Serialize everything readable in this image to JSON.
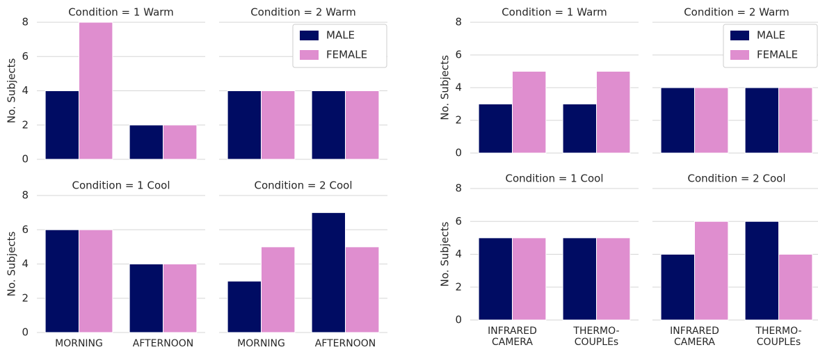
{
  "chart_data": [
    {
      "type": "bar",
      "title": "Condition = 1 Warm",
      "ylabel": "No. Subjects",
      "categories": [
        null,
        null
      ],
      "series": [
        {
          "name": "MALE",
          "color": "#000c63",
          "values": [
            4,
            2
          ]
        },
        {
          "name": "FEMALE",
          "color": "#df8ecf",
          "values": [
            8,
            2
          ]
        }
      ],
      "ylim": [
        0,
        8
      ],
      "yticks": [
        0,
        2,
        4,
        6,
        8
      ],
      "grid": true
    },
    {
      "type": "bar",
      "title": "Condition = 2 Warm",
      "categories": [
        null,
        null
      ],
      "series": [
        {
          "name": "MALE",
          "color": "#000c63",
          "values": [
            4,
            4
          ]
        },
        {
          "name": "FEMALE",
          "color": "#df8ecf",
          "values": [
            4,
            4
          ]
        }
      ],
      "ylim": [
        0,
        8
      ],
      "yticks": [
        0,
        2,
        4,
        6,
        8
      ],
      "ytick_labels": false,
      "grid": true,
      "legend": "upper right"
    },
    {
      "type": "bar",
      "title": "Condition = 1 Cool",
      "ylabel": "No. Subjects",
      "categories": [
        "MORNING",
        "AFTERNOON"
      ],
      "series": [
        {
          "name": "MALE",
          "color": "#000c63",
          "values": [
            6,
            4
          ]
        },
        {
          "name": "FEMALE",
          "color": "#df8ecf",
          "values": [
            6,
            4
          ]
        }
      ],
      "ylim": [
        0,
        8
      ],
      "yticks": [
        0,
        2,
        4,
        6,
        8
      ],
      "grid": true
    },
    {
      "type": "bar",
      "title": "Condition = 2 Cool",
      "categories": [
        "MORNING",
        "AFTERNOON"
      ],
      "series": [
        {
          "name": "MALE",
          "color": "#000c63",
          "values": [
            3,
            7
          ]
        },
        {
          "name": "FEMALE",
          "color": "#df8ecf",
          "values": [
            5,
            5
          ]
        }
      ],
      "ylim": [
        0,
        8
      ],
      "yticks": [
        0,
        2,
        4,
        6,
        8
      ],
      "ytick_labels": false,
      "grid": true
    },
    {
      "type": "bar",
      "title": "Condition = 1 Warm",
      "ylabel": "No. Subjects",
      "categories": [
        null,
        null
      ],
      "series": [
        {
          "name": "MALE",
          "color": "#000c63",
          "values": [
            3,
            3
          ]
        },
        {
          "name": "FEMALE",
          "color": "#df8ecf",
          "values": [
            5,
            5
          ]
        }
      ],
      "ylim": [
        0,
        8
      ],
      "yticks": [
        0,
        2,
        4,
        6,
        8
      ],
      "grid": true
    },
    {
      "type": "bar",
      "title": "Condition = 2 Warm",
      "categories": [
        null,
        null
      ],
      "series": [
        {
          "name": "MALE",
          "color": "#000c63",
          "values": [
            4,
            4
          ]
        },
        {
          "name": "FEMALE",
          "color": "#df8ecf",
          "values": [
            4,
            4
          ]
        }
      ],
      "ylim": [
        0,
        8
      ],
      "yticks": [
        0,
        2,
        4,
        6,
        8
      ],
      "ytick_labels": false,
      "grid": true,
      "legend": "upper right"
    },
    {
      "type": "bar",
      "title": "Condition = 1 Cool",
      "ylabel": "No. Subjects",
      "categories": [
        "INFRARED CAMERA",
        "THERMO-COUPLEs"
      ],
      "series": [
        {
          "name": "MALE",
          "color": "#000c63",
          "values": [
            5,
            5
          ]
        },
        {
          "name": "FEMALE",
          "color": "#df8ecf",
          "values": [
            5,
            5
          ]
        }
      ],
      "ylim": [
        0,
        8
      ],
      "yticks": [
        0,
        2,
        4,
        6,
        8
      ],
      "grid": true
    },
    {
      "type": "bar",
      "title": "Condition = 2 Cool",
      "categories": [
        "INFRARED CAMERA",
        "THERMO-COUPLEs"
      ],
      "series": [
        {
          "name": "MALE",
          "color": "#000c63",
          "values": [
            4,
            6
          ]
        },
        {
          "name": "FEMALE",
          "color": "#df8ecf",
          "values": [
            6,
            4
          ]
        }
      ],
      "ylim": [
        0,
        8
      ],
      "yticks": [
        0,
        2,
        4,
        6,
        8
      ],
      "ytick_labels": false,
      "grid": true
    }
  ]
}
